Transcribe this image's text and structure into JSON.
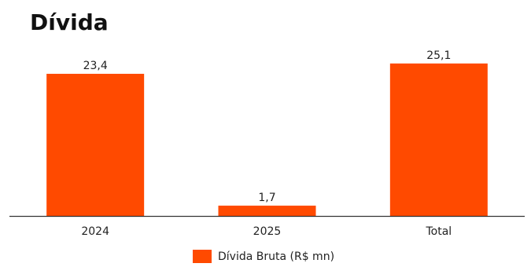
{
  "chart_data": {
    "type": "bar",
    "title": "Dívida",
    "categories": [
      "2024",
      "2025",
      "Total"
    ],
    "series": [
      {
        "name": "Dívida Bruta (R$ mn)",
        "values": [
          23.4,
          1.7,
          25.1
        ],
        "color": "#ff4a00"
      }
    ],
    "data_labels": [
      "23,4",
      "1,7",
      "25,1"
    ],
    "ylim": [
      0,
      26.5
    ],
    "grid": false,
    "legend_position": "bottom"
  }
}
